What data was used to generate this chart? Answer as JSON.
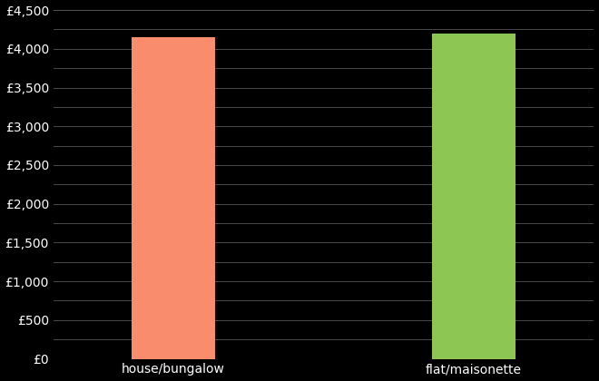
{
  "categories": [
    "house/bungalow",
    "flat/maisonette"
  ],
  "values": [
    4150,
    4200
  ],
  "bar_colors": [
    "#FA8C6E",
    "#8DC653"
  ],
  "background_color": "#000000",
  "text_color": "#ffffff",
  "grid_color": "#555555",
  "ylim": [
    0,
    4500
  ],
  "yticks": [
    0,
    250,
    500,
    750,
    1000,
    1250,
    1500,
    1750,
    2000,
    2250,
    2500,
    2750,
    3000,
    3250,
    3500,
    3750,
    4000,
    4250,
    4500
  ],
  "ytick_labels": [
    "£0",
    "",
    "£500",
    "",
    "£1,000",
    "",
    "£1,500",
    "",
    "£2,000",
    "",
    "£2,500",
    "",
    "£3,000",
    "",
    "£3,500",
    "",
    "£4,000",
    "",
    "£4,500"
  ],
  "bar_width": 0.28,
  "figsize": [
    6.6,
    4.2
  ],
  "dpi": 100
}
